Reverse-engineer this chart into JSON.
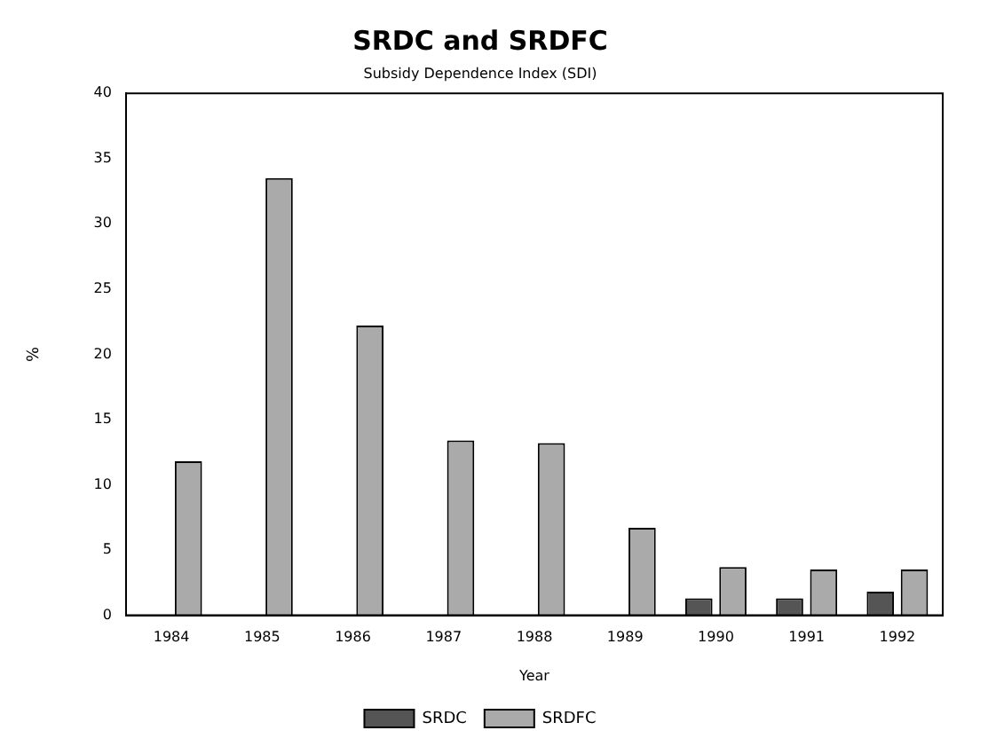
{
  "chart_data": {
    "type": "bar",
    "title": "SRDC and SRDFC",
    "subtitle": "Subsidy Dependence Index (SDI)",
    "xlabel": "Year",
    "ylabel": "%",
    "categories": [
      "1984",
      "1985",
      "1986",
      "1987",
      "1988",
      "1989",
      "1990",
      "1991",
      "1992"
    ],
    "series": [
      {
        "name": "SRDC",
        "color": "#555555",
        "values": [
          null,
          null,
          null,
          null,
          null,
          null,
          1.3,
          1.3,
          1.8
        ]
      },
      {
        "name": "SRDFC",
        "color": "#aaaaaa",
        "values": [
          11.8,
          33.5,
          22.2,
          13.4,
          13.2,
          6.7,
          3.7,
          3.5,
          3.5
        ]
      }
    ],
    "ylim": [
      0,
      40
    ],
    "yticks": [
      0,
      5,
      10,
      15,
      20,
      25,
      30,
      35,
      40
    ],
    "grid": false,
    "legend": "bottom"
  }
}
